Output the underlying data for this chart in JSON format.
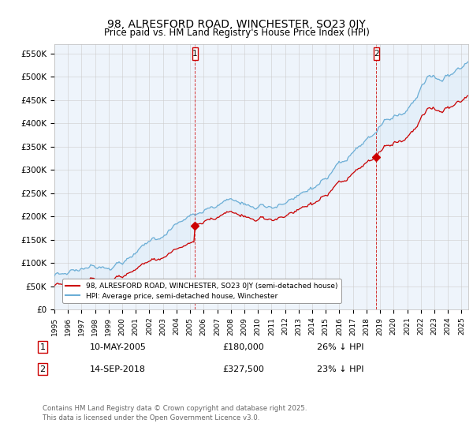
{
  "title": "98, ALRESFORD ROAD, WINCHESTER, SO23 0JY",
  "subtitle": "Price paid vs. HM Land Registry's House Price Index (HPI)",
  "title_fontsize": 10,
  "subtitle_fontsize": 9,
  "ylabel_ticks": [
    "£0",
    "£50K",
    "£100K",
    "£150K",
    "£200K",
    "£250K",
    "£300K",
    "£350K",
    "£400K",
    "£450K",
    "£500K",
    "£550K"
  ],
  "ytick_values": [
    0,
    50000,
    100000,
    150000,
    200000,
    250000,
    300000,
    350000,
    400000,
    450000,
    500000,
    550000
  ],
  "ylim": [
    0,
    570000
  ],
  "xlim_start": 1995.0,
  "xlim_end": 2025.5,
  "hpi_color": "#6baed6",
  "hpi_fill_color": "#d0e4f5",
  "price_color": "#cc0000",
  "sale_dates": [
    2005.36,
    2018.71
  ],
  "sale_prices": [
    180000,
    327500
  ],
  "annotation1_date": "10-MAY-2005",
  "annotation1_price": "£180,000",
  "annotation1_hpi": "26% ↓ HPI",
  "annotation2_date": "14-SEP-2018",
  "annotation2_price": "£327,500",
  "annotation2_hpi": "23% ↓ HPI",
  "legend_label1": "98, ALRESFORD ROAD, WINCHESTER, SO23 0JY (semi-detached house)",
  "legend_label2": "HPI: Average price, semi-detached house, Winchester",
  "footer": "Contains HM Land Registry data © Crown copyright and database right 2025.\nThis data is licensed under the Open Government Licence v3.0.",
  "background_color": "#ffffff",
  "chart_bg_color": "#eef4fb",
  "grid_color": "#cccccc"
}
